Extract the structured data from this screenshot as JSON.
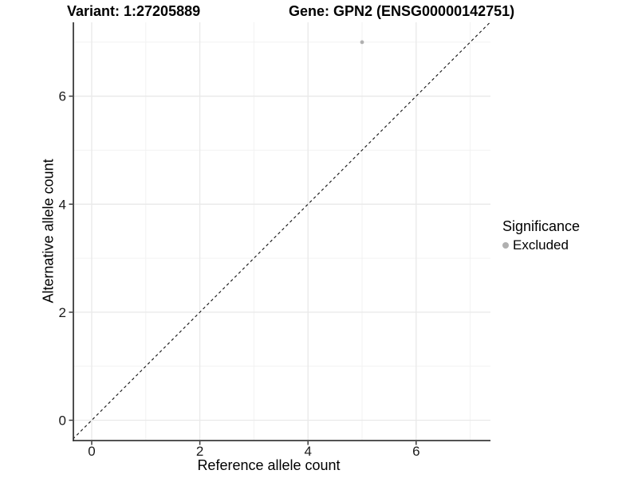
{
  "titles": {
    "variant": "Variant: 1:27205889",
    "gene": "Gene: GPN2 (ENSG00000142751)"
  },
  "axes": {
    "x": {
      "label": "Reference allele count"
    },
    "y": {
      "label": "Alternative allele count"
    }
  },
  "legend": {
    "title": "Significance",
    "items": [
      {
        "label": "Excluded",
        "color": "#b0b0b0"
      }
    ]
  },
  "chart_data": {
    "type": "scatter",
    "title": "Variant: 1:27205889 — Gene: GPN2 (ENSG00000142751)",
    "xlabel": "Reference allele count",
    "ylabel": "Alternative allele count",
    "xlim": [
      -0.35,
      7.37
    ],
    "ylim": [
      -0.35,
      7.37
    ],
    "x_ticks": [
      0,
      2,
      4,
      6
    ],
    "y_ticks": [
      0,
      2,
      4,
      6
    ],
    "minor_grid_x": [
      1,
      3,
      5,
      7
    ],
    "minor_grid_y": [
      1,
      3,
      5,
      7
    ],
    "grid": "on",
    "legend_position": "right",
    "series": [
      {
        "name": "Excluded",
        "color": "#b0b0b0",
        "points": [
          {
            "x": 5,
            "y": 7
          }
        ]
      }
    ],
    "reference_line": {
      "type": "identity y=x",
      "style": "dashed",
      "color": "#111111",
      "from": [
        -0.35,
        -0.35
      ],
      "to": [
        7.37,
        7.37
      ]
    }
  },
  "colors": {
    "background": "#ffffff",
    "axis_line": "#3a3a3a",
    "major_grid": "#e9e9e9",
    "minor_grid": "#f2f2f2",
    "tick_label": "#1a1a1a",
    "point": "#b0b0b0"
  }
}
